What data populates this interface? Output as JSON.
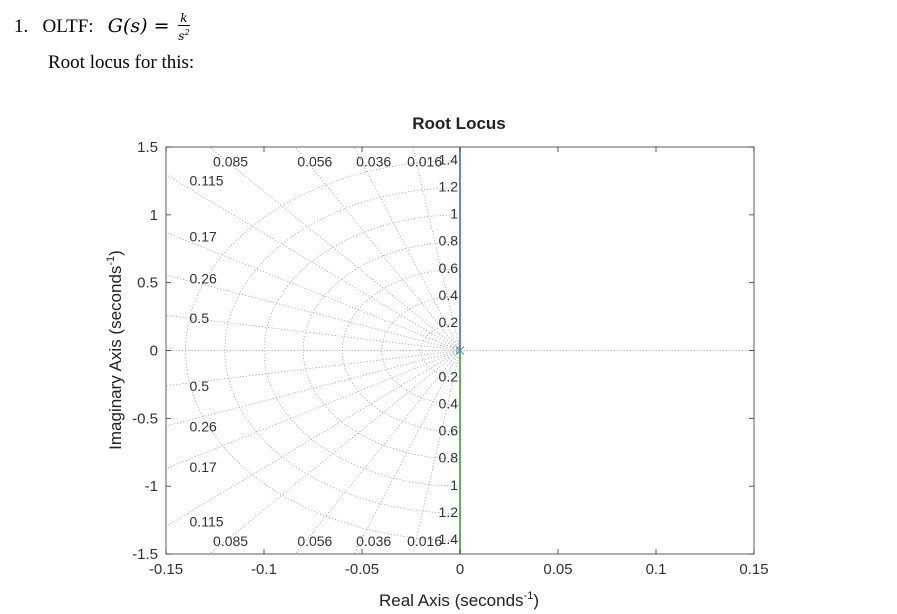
{
  "problem": {
    "number": "1.",
    "label": "OLTF:",
    "lhs": "G(s) =",
    "numerator": "k",
    "denominator": "s",
    "denominator_exponent": "2",
    "caption": "Root locus for this:"
  },
  "chart_data": {
    "type": "line",
    "title": "Root Locus",
    "xlabel": "Real Axis (seconds",
    "xlabel_sup": "-1",
    "xlabel_close": ")",
    "ylabel": "Imaginary Axis (seconds",
    "ylabel_sup": "-1",
    "ylabel_close": ")",
    "xlim": [
      -0.15,
      0.15
    ],
    "ylim": [
      -1.5,
      1.5
    ],
    "x_ticks": [
      -0.15,
      -0.1,
      -0.05,
      0,
      0.05,
      0.1,
      0.15
    ],
    "x_tick_labels": [
      "-0.15",
      "-0.1",
      "-0.05",
      "0",
      "0.05",
      "0.1",
      "0.15"
    ],
    "y_ticks": [
      -1.5,
      -1,
      -0.5,
      0,
      0.5,
      1,
      1.5
    ],
    "y_tick_labels": [
      "-1.5",
      "-1",
      "-0.5",
      "0",
      "0.5",
      "1",
      "1.5"
    ],
    "grid": true,
    "series": [
      {
        "color": "#4a63c7",
        "x": [
          0,
          0
        ],
        "y": [
          0,
          1.5
        ]
      },
      {
        "color": "#3d9a3d",
        "x": [
          0,
          0
        ],
        "y": [
          0,
          -1.5
        ]
      }
    ],
    "poles": [
      {
        "x": 0,
        "y": 0
      }
    ],
    "damping_ratios": [
      0.016,
      0.036,
      0.056,
      0.085,
      0.115,
      0.17,
      0.26,
      0.5
    ],
    "damping_labels_top": [
      {
        "text": "0.085",
        "x": -0.126,
        "y": 1.385
      },
      {
        "text": "0.115",
        "x": -0.138,
        "y": 1.245
      },
      {
        "text": "0.056",
        "x": -0.083,
        "y": 1.385
      },
      {
        "text": "0.036",
        "x": -0.053,
        "y": 1.385
      },
      {
        "text": "0.016",
        "x": -0.027,
        "y": 1.385
      },
      {
        "text": "0.17",
        "x": -0.138,
        "y": 0.83
      },
      {
        "text": "0.26",
        "x": -0.138,
        "y": 0.52
      },
      {
        "text": "0.5",
        "x": -0.138,
        "y": 0.23
      }
    ],
    "damping_labels_bottom": [
      {
        "text": "0.5",
        "x": -0.138,
        "y": -0.27
      },
      {
        "text": "0.26",
        "x": -0.138,
        "y": -0.57
      },
      {
        "text": "0.17",
        "x": -0.138,
        "y": -0.87
      },
      {
        "text": "0.115",
        "x": -0.138,
        "y": -1.27
      },
      {
        "text": "0.085",
        "x": -0.126,
        "y": -1.415
      },
      {
        "text": "0.056",
        "x": -0.083,
        "y": -1.415
      },
      {
        "text": "0.036",
        "x": -0.053,
        "y": -1.415
      },
      {
        "text": "0.016",
        "x": -0.027,
        "y": -1.415
      }
    ],
    "frequency_labels": [
      "1.4",
      "1.2",
      "1",
      "0.8",
      "0.6",
      "0.4",
      "0.2"
    ],
    "frequency_values": [
      1.4,
      1.2,
      1,
      0.8,
      0.6,
      0.4,
      0.2
    ]
  }
}
